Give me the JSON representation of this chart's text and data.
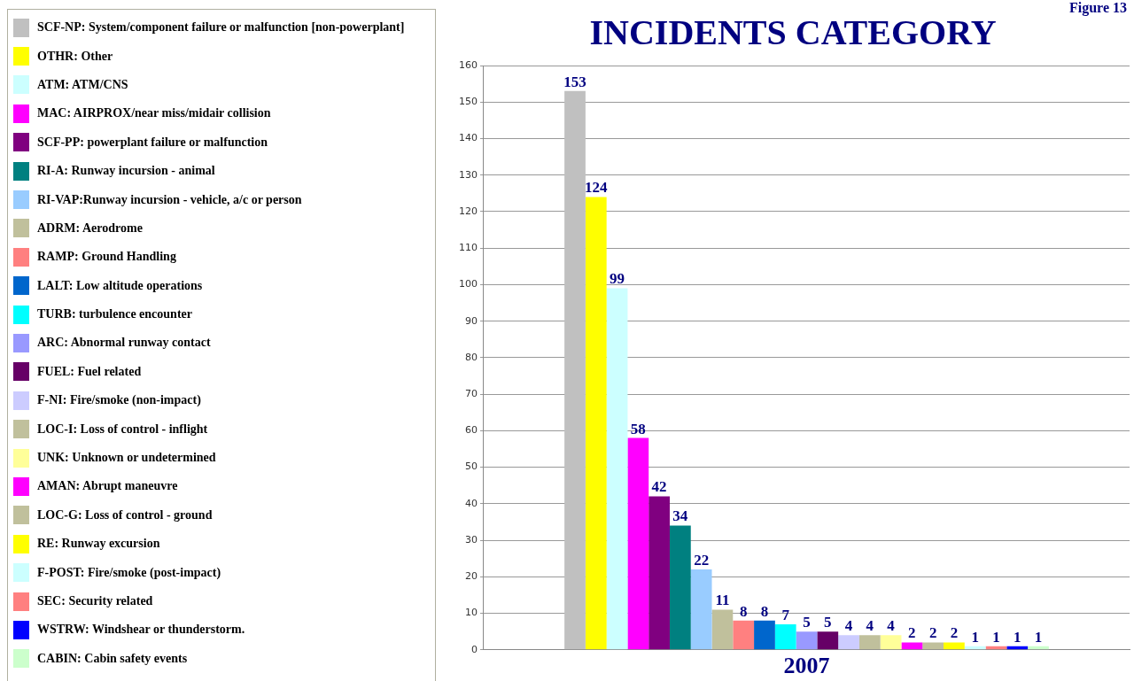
{
  "chart_data": {
    "type": "bar",
    "title": "INCIDENTS CATEGORY",
    "categories": [
      "2007"
    ],
    "series": [
      {
        "name": "SCF-NP: System/component failure or malfunction [non-powerplant]",
        "color": "#c0c0c0",
        "values": [
          153
        ]
      },
      {
        "name": "OTHR: Other",
        "color": "#ffff00",
        "values": [
          124
        ]
      },
      {
        "name": "ATM: ATM/CNS",
        "color": "#ccffff",
        "values": [
          99
        ]
      },
      {
        "name": "MAC: AIRPROX/near miss/midair collision",
        "color": "#ff00ff",
        "values": [
          58
        ]
      },
      {
        "name": "SCF-PP: powerplant failure or malfunction",
        "color": "#800080",
        "values": [
          42
        ]
      },
      {
        "name": "RI-A: Runway incursion - animal",
        "color": "#008080",
        "values": [
          34
        ]
      },
      {
        "name": "RI-VAP:Runway incursion - vehicle, a/c or person",
        "color": "#99ccff",
        "values": [
          22
        ]
      },
      {
        "name": "ADRM: Aerodrome",
        "color": "#c0c09c",
        "values": [
          11
        ]
      },
      {
        "name": "RAMP: Ground Handling",
        "color": "#ff8080",
        "values": [
          8
        ]
      },
      {
        "name": "LALT: Low altitude operations",
        "color": "#0066cc",
        "values": [
          8
        ]
      },
      {
        "name": "TURB: turbulence encounter",
        "color": "#00ffff",
        "values": [
          7
        ]
      },
      {
        "name": "ARC: Abnormal runway contact",
        "color": "#9999ff",
        "values": [
          5
        ]
      },
      {
        "name": "FUEL: Fuel related",
        "color": "#660066",
        "values": [
          5
        ]
      },
      {
        "name": "F-NI: Fire/smoke (non-impact)",
        "color": "#ccccff",
        "values": [
          4
        ]
      },
      {
        "name": "LOC-I: Loss of control - inflight",
        "color": "#c0c09c",
        "values": [
          4
        ]
      },
      {
        "name": "UNK: Unknown or undetermined",
        "color": "#ffff99",
        "values": [
          4
        ]
      },
      {
        "name": "AMAN: Abrupt maneuvre",
        "color": "#ff00ff",
        "values": [
          2
        ]
      },
      {
        "name": "LOC-G: Loss of control - ground",
        "color": "#c0c09c",
        "values": [
          2
        ]
      },
      {
        "name": "RE: Runway excursion",
        "color": "#ffff00",
        "values": [
          2
        ]
      },
      {
        "name": "F-POST: Fire/smoke (post-impact)",
        "color": "#ccffff",
        "values": [
          1
        ]
      },
      {
        "name": "SEC: Security related",
        "color": "#ff8080",
        "values": [
          1
        ]
      },
      {
        "name": "WSTRW: Windshear or thunderstorm.",
        "color": "#0000ff",
        "values": [
          1
        ]
      },
      {
        "name": "CABIN: Cabin safety events",
        "color": "#ccffcc",
        "values": [
          1
        ]
      }
    ],
    "ylim": [
      0,
      160
    ],
    "yticks": [
      0,
      10,
      20,
      30,
      40,
      50,
      60,
      70,
      80,
      90,
      100,
      110,
      120,
      130,
      140,
      150,
      160
    ],
    "grid": "y",
    "legend": "left",
    "data_labels": true,
    "annotations": [
      "Figure 13"
    ]
  }
}
